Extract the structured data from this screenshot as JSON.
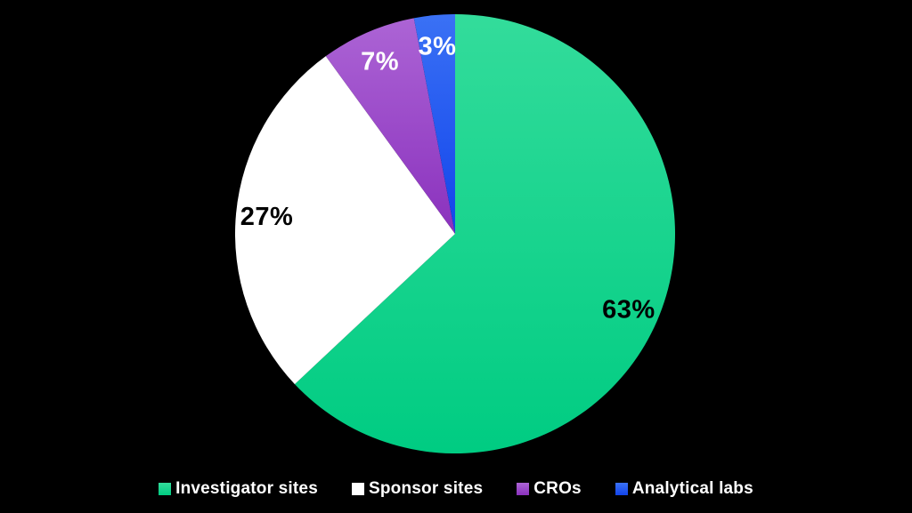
{
  "background": "#000000",
  "chart_data": {
    "type": "pie",
    "title": "",
    "legend_position": "bottom",
    "direction": "clockwise",
    "start_angle_deg": 0,
    "center": {
      "x": 511,
      "y": 263
    },
    "radius": 247,
    "label_radius_ratio": 0.86,
    "series": [
      {
        "label": "Investigator sites",
        "value": 63,
        "display_label": "63%",
        "color_from": "#33DC9B",
        "color_to": "#00CC82",
        "label_color": "#000000"
      },
      {
        "label": "Sponsor sites",
        "value": 27,
        "display_label": "27%",
        "color_from": "#FFFFFF",
        "color_to": "#FFFFFF",
        "label_color": "#000000"
      },
      {
        "label": "CROs",
        "value": 7,
        "display_label": "7%",
        "color_from": "#AC64D5",
        "color_to": "#8A31BD",
        "label_color": "#FFFFFF"
      },
      {
        "label": "Analytical labs",
        "value": 3,
        "display_label": "3%",
        "color_from": "#3A71F5",
        "color_to": "#1244EB",
        "label_color": "#FFFFFF"
      }
    ]
  }
}
